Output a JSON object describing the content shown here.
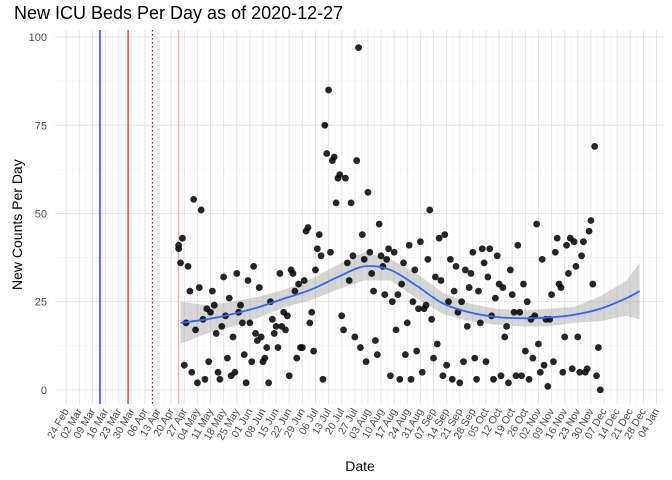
{
  "chart_data": {
    "type": "scatter",
    "title": "New ICU Beds Per Day as of 2020-12-27",
    "xlabel": "Date",
    "ylabel": "New Counts Per Day",
    "ylim": [
      -4,
      102
    ],
    "yticks": [
      0,
      25,
      50,
      75,
      100
    ],
    "xlim": [
      "2020-02-18",
      "2021-01-08"
    ],
    "xticks": [
      "24 Feb",
      "02 Mar",
      "09 Mar",
      "16 Mar",
      "23 Mar",
      "30 Mar",
      "06 Apr",
      "13 Apr",
      "20 Apr",
      "27 Apr",
      "04 May",
      "11 May",
      "18 May",
      "25 May",
      "01 Jun",
      "08 Jun",
      "15 Jun",
      "22 Jun",
      "29 Jun",
      "06 Jul",
      "13 Jul",
      "20 Jul",
      "27 Jul",
      "03 Aug",
      "10 Aug",
      "17 Aug",
      "24 Aug",
      "31 Aug",
      "07 Sep",
      "14 Sep",
      "21 Sep",
      "28 Sep",
      "05 Oct",
      "12 Oct",
      "19 Oct",
      "26 Oct",
      "02 Nov",
      "09 Nov",
      "16 Nov",
      "23 Nov",
      "30 Nov",
      "07 Dec",
      "14 Dec",
      "21 Dec",
      "28 Dec",
      "04 Jan"
    ],
    "xtick_dates": [
      "2020-02-24",
      "2020-03-02",
      "2020-03-09",
      "2020-03-16",
      "2020-03-23",
      "2020-03-30",
      "2020-04-06",
      "2020-04-13",
      "2020-04-20",
      "2020-04-27",
      "2020-05-04",
      "2020-05-11",
      "2020-05-18",
      "2020-05-25",
      "2020-06-01",
      "2020-06-08",
      "2020-06-15",
      "2020-06-22",
      "2020-06-29",
      "2020-07-06",
      "2020-07-13",
      "2020-07-20",
      "2020-07-27",
      "2020-08-03",
      "2020-08-10",
      "2020-08-17",
      "2020-08-24",
      "2020-08-31",
      "2020-09-07",
      "2020-09-14",
      "2020-09-21",
      "2020-09-28",
      "2020-10-05",
      "2020-10-12",
      "2020-10-19",
      "2020-10-26",
      "2020-11-02",
      "2020-11-09",
      "2020-11-16",
      "2020-11-23",
      "2020-11-30",
      "2020-12-07",
      "2020-12-14",
      "2020-12-21",
      "2020-12-28",
      "2021-01-04"
    ],
    "grid": true,
    "vlines": [
      {
        "x": "2020-03-13",
        "color": "#0000ff",
        "style": "solid"
      },
      {
        "x": "2020-03-28",
        "color": "#cc0000",
        "style": "solid"
      },
      {
        "x": "2020-04-10",
        "color": "#cc0000",
        "style": "dotted"
      },
      {
        "x": "2020-04-24",
        "color": "#f4a6a6",
        "style": "solid"
      }
    ],
    "points": [
      {
        "x": "2020-04-24",
        "y": 40
      },
      {
        "x": "2020-04-24",
        "y": 41
      },
      {
        "x": "2020-04-25",
        "y": 36
      },
      {
        "x": "2020-04-26",
        "y": 43
      },
      {
        "x": "2020-04-27",
        "y": 7
      },
      {
        "x": "2020-04-28",
        "y": 19
      },
      {
        "x": "2020-04-29",
        "y": 35
      },
      {
        "x": "2020-04-30",
        "y": 28
      },
      {
        "x": "2020-05-01",
        "y": 5
      },
      {
        "x": "2020-05-02",
        "y": 54
      },
      {
        "x": "2020-05-03",
        "y": 17
      },
      {
        "x": "2020-05-04",
        "y": 2
      },
      {
        "x": "2020-05-05",
        "y": 29
      },
      {
        "x": "2020-05-06",
        "y": 51
      },
      {
        "x": "2020-05-07",
        "y": 20
      },
      {
        "x": "2020-05-08",
        "y": 3
      },
      {
        "x": "2020-05-09",
        "y": 23
      },
      {
        "x": "2020-05-10",
        "y": 8
      },
      {
        "x": "2020-05-11",
        "y": 22
      },
      {
        "x": "2020-05-12",
        "y": 28
      },
      {
        "x": "2020-05-13",
        "y": 24
      },
      {
        "x": "2020-05-14",
        "y": 16
      },
      {
        "x": "2020-05-15",
        "y": 5
      },
      {
        "x": "2020-05-16",
        "y": 3
      },
      {
        "x": "2020-05-17",
        "y": 18
      },
      {
        "x": "2020-05-18",
        "y": 32
      },
      {
        "x": "2020-05-19",
        "y": 21
      },
      {
        "x": "2020-05-20",
        "y": 9
      },
      {
        "x": "2020-05-21",
        "y": 26
      },
      {
        "x": "2020-05-22",
        "y": 4
      },
      {
        "x": "2020-05-23",
        "y": 15
      },
      {
        "x": "2020-05-24",
        "y": 5
      },
      {
        "x": "2020-05-25",
        "y": 33
      },
      {
        "x": "2020-05-26",
        "y": 22
      },
      {
        "x": "2020-05-27",
        "y": 24
      },
      {
        "x": "2020-05-28",
        "y": 19
      },
      {
        "x": "2020-05-29",
        "y": 10
      },
      {
        "x": "2020-05-30",
        "y": 2
      },
      {
        "x": "2020-05-31",
        "y": 31
      },
      {
        "x": "2020-06-01",
        "y": 19
      },
      {
        "x": "2020-06-02",
        "y": 8
      },
      {
        "x": "2020-06-03",
        "y": 35
      },
      {
        "x": "2020-06-04",
        "y": 16
      },
      {
        "x": "2020-06-05",
        "y": 14
      },
      {
        "x": "2020-06-06",
        "y": 29
      },
      {
        "x": "2020-06-07",
        "y": 15
      },
      {
        "x": "2020-06-08",
        "y": 8
      },
      {
        "x": "2020-06-09",
        "y": 9
      },
      {
        "x": "2020-06-10",
        "y": 12
      },
      {
        "x": "2020-06-11",
        "y": 2
      },
      {
        "x": "2020-06-12",
        "y": 25
      },
      {
        "x": "2020-06-13",
        "y": 20
      },
      {
        "x": "2020-06-14",
        "y": 16
      },
      {
        "x": "2020-06-15",
        "y": 18
      },
      {
        "x": "2020-06-16",
        "y": 12
      },
      {
        "x": "2020-06-17",
        "y": 33
      },
      {
        "x": "2020-06-18",
        "y": 18
      },
      {
        "x": "2020-06-19",
        "y": 22
      },
      {
        "x": "2020-06-20",
        "y": 17
      },
      {
        "x": "2020-06-21",
        "y": 21
      },
      {
        "x": "2020-06-22",
        "y": 4
      },
      {
        "x": "2020-06-23",
        "y": 34
      },
      {
        "x": "2020-06-24",
        "y": 33
      },
      {
        "x": "2020-06-25",
        "y": 28
      },
      {
        "x": "2020-06-26",
        "y": 9
      },
      {
        "x": "2020-06-27",
        "y": 30
      },
      {
        "x": "2020-06-28",
        "y": 12
      },
      {
        "x": "2020-06-29",
        "y": 12
      },
      {
        "x": "2020-06-30",
        "y": 31
      },
      {
        "x": "2020-07-01",
        "y": 45
      },
      {
        "x": "2020-07-02",
        "y": 46
      },
      {
        "x": "2020-07-03",
        "y": 19
      },
      {
        "x": "2020-07-04",
        "y": 22
      },
      {
        "x": "2020-07-05",
        "y": 11
      },
      {
        "x": "2020-07-06",
        "y": 34
      },
      {
        "x": "2020-07-07",
        "y": 40
      },
      {
        "x": "2020-07-08",
        "y": 44
      },
      {
        "x": "2020-07-09",
        "y": 38
      },
      {
        "x": "2020-07-10",
        "y": 3
      },
      {
        "x": "2020-07-11",
        "y": 75
      },
      {
        "x": "2020-07-12",
        "y": 67
      },
      {
        "x": "2020-07-13",
        "y": 85
      },
      {
        "x": "2020-07-14",
        "y": 39
      },
      {
        "x": "2020-07-15",
        "y": 65
      },
      {
        "x": "2020-07-16",
        "y": 66
      },
      {
        "x": "2020-07-17",
        "y": 53
      },
      {
        "x": "2020-07-18",
        "y": 60
      },
      {
        "x": "2020-07-19",
        "y": 61
      },
      {
        "x": "2020-07-20",
        "y": 21
      },
      {
        "x": "2020-07-21",
        "y": 17
      },
      {
        "x": "2020-07-22",
        "y": 60
      },
      {
        "x": "2020-07-23",
        "y": 36
      },
      {
        "x": "2020-07-24",
        "y": 31
      },
      {
        "x": "2020-07-25",
        "y": 53
      },
      {
        "x": "2020-07-26",
        "y": 38
      },
      {
        "x": "2020-07-27",
        "y": 15
      },
      {
        "x": "2020-07-28",
        "y": 65
      },
      {
        "x": "2020-07-29",
        "y": 97
      },
      {
        "x": "2020-07-30",
        "y": 12
      },
      {
        "x": "2020-07-31",
        "y": 44
      },
      {
        "x": "2020-08-01",
        "y": 37
      },
      {
        "x": "2020-08-02",
        "y": 8
      },
      {
        "x": "2020-08-03",
        "y": 56
      },
      {
        "x": "2020-08-04",
        "y": 39
      },
      {
        "x": "2020-08-05",
        "y": 33
      },
      {
        "x": "2020-08-06",
        "y": 28
      },
      {
        "x": "2020-08-07",
        "y": 14
      },
      {
        "x": "2020-08-08",
        "y": 10
      },
      {
        "x": "2020-08-09",
        "y": 47
      },
      {
        "x": "2020-08-10",
        "y": 38
      },
      {
        "x": "2020-08-11",
        "y": 35
      },
      {
        "x": "2020-08-12",
        "y": 27
      },
      {
        "x": "2020-08-13",
        "y": 37
      },
      {
        "x": "2020-08-14",
        "y": 40
      },
      {
        "x": "2020-08-15",
        "y": 4
      },
      {
        "x": "2020-08-16",
        "y": 25
      },
      {
        "x": "2020-08-17",
        "y": 39
      },
      {
        "x": "2020-08-18",
        "y": 17
      },
      {
        "x": "2020-08-19",
        "y": 27
      },
      {
        "x": "2020-08-20",
        "y": 3
      },
      {
        "x": "2020-08-21",
        "y": 30
      },
      {
        "x": "2020-08-22",
        "y": 36
      },
      {
        "x": "2020-08-23",
        "y": 10
      },
      {
        "x": "2020-08-24",
        "y": 19
      },
      {
        "x": "2020-08-25",
        "y": 41
      },
      {
        "x": "2020-08-26",
        "y": 3
      },
      {
        "x": "2020-08-27",
        "y": 25
      },
      {
        "x": "2020-08-28",
        "y": 34
      },
      {
        "x": "2020-08-29",
        "y": 11
      },
      {
        "x": "2020-08-30",
        "y": 23
      },
      {
        "x": "2020-08-31",
        "y": 42
      },
      {
        "x": "2020-09-01",
        "y": 5
      },
      {
        "x": "2020-09-02",
        "y": 23
      },
      {
        "x": "2020-09-03",
        "y": 24
      },
      {
        "x": "2020-09-04",
        "y": 37
      },
      {
        "x": "2020-09-05",
        "y": 51
      },
      {
        "x": "2020-09-06",
        "y": 20
      },
      {
        "x": "2020-09-07",
        "y": 9
      },
      {
        "x": "2020-09-08",
        "y": 32
      },
      {
        "x": "2020-09-09",
        "y": 13
      },
      {
        "x": "2020-09-10",
        "y": 43
      },
      {
        "x": "2020-09-11",
        "y": 31
      },
      {
        "x": "2020-09-12",
        "y": 4
      },
      {
        "x": "2020-09-13",
        "y": 44
      },
      {
        "x": "2020-09-14",
        "y": 7
      },
      {
        "x": "2020-09-15",
        "y": 25
      },
      {
        "x": "2020-09-16",
        "y": 37
      },
      {
        "x": "2020-09-17",
        "y": 3
      },
      {
        "x": "2020-09-18",
        "y": 28
      },
      {
        "x": "2020-09-19",
        "y": 35
      },
      {
        "x": "2020-09-20",
        "y": 22
      },
      {
        "x": "2020-09-21",
        "y": 2
      },
      {
        "x": "2020-09-22",
        "y": 25
      },
      {
        "x": "2020-09-23",
        "y": 8
      },
      {
        "x": "2020-09-24",
        "y": 34
      },
      {
        "x": "2020-09-25",
        "y": 18
      },
      {
        "x": "2020-09-26",
        "y": 29
      },
      {
        "x": "2020-09-27",
        "y": 33
      },
      {
        "x": "2020-09-28",
        "y": 39
      },
      {
        "x": "2020-09-29",
        "y": 9
      },
      {
        "x": "2020-09-30",
        "y": 3
      },
      {
        "x": "2020-10-01",
        "y": 28
      },
      {
        "x": "2020-10-02",
        "y": 19
      },
      {
        "x": "2020-10-03",
        "y": 40
      },
      {
        "x": "2020-10-04",
        "y": 36
      },
      {
        "x": "2020-10-05",
        "y": 8
      },
      {
        "x": "2020-10-06",
        "y": 32
      },
      {
        "x": "2020-10-07",
        "y": 40
      },
      {
        "x": "2020-10-08",
        "y": 21
      },
      {
        "x": "2020-10-09",
        "y": 3
      },
      {
        "x": "2020-10-10",
        "y": 26
      },
      {
        "x": "2020-10-11",
        "y": 38
      },
      {
        "x": "2020-10-12",
        "y": 30
      },
      {
        "x": "2020-10-13",
        "y": 4
      },
      {
        "x": "2020-10-14",
        "y": 29
      },
      {
        "x": "2020-10-15",
        "y": 15
      },
      {
        "x": "2020-10-16",
        "y": 18
      },
      {
        "x": "2020-10-17",
        "y": 2
      },
      {
        "x": "2020-10-18",
        "y": 34
      },
      {
        "x": "2020-10-19",
        "y": 27
      },
      {
        "x": "2020-10-20",
        "y": 22
      },
      {
        "x": "2020-10-21",
        "y": 4
      },
      {
        "x": "2020-10-22",
        "y": 41
      },
      {
        "x": "2020-10-23",
        "y": 22
      },
      {
        "x": "2020-10-24",
        "y": 4
      },
      {
        "x": "2020-10-25",
        "y": 30
      },
      {
        "x": "2020-10-26",
        "y": 11
      },
      {
        "x": "2020-10-27",
        "y": 25
      },
      {
        "x": "2020-10-28",
        "y": 3
      },
      {
        "x": "2020-10-29",
        "y": 20
      },
      {
        "x": "2020-10-30",
        "y": 9
      },
      {
        "x": "2020-10-31",
        "y": 21
      },
      {
        "x": "2020-11-01",
        "y": 47
      },
      {
        "x": "2020-11-02",
        "y": 13
      },
      {
        "x": "2020-11-03",
        "y": 5
      },
      {
        "x": "2020-11-04",
        "y": 37
      },
      {
        "x": "2020-11-05",
        "y": 7
      },
      {
        "x": "2020-11-06",
        "y": 20
      },
      {
        "x": "2020-11-07",
        "y": 1
      },
      {
        "x": "2020-11-08",
        "y": 20
      },
      {
        "x": "2020-11-09",
        "y": 27
      },
      {
        "x": "2020-11-10",
        "y": 8
      },
      {
        "x": "2020-11-11",
        "y": 39
      },
      {
        "x": "2020-11-12",
        "y": 43
      },
      {
        "x": "2020-11-13",
        "y": 30
      },
      {
        "x": "2020-11-14",
        "y": 29
      },
      {
        "x": "2020-11-15",
        "y": 5
      },
      {
        "x": "2020-11-16",
        "y": 15
      },
      {
        "x": "2020-11-17",
        "y": 41
      },
      {
        "x": "2020-11-18",
        "y": 33
      },
      {
        "x": "2020-11-19",
        "y": 43
      },
      {
        "x": "2020-11-20",
        "y": 6
      },
      {
        "x": "2020-11-21",
        "y": 42
      },
      {
        "x": "2020-11-22",
        "y": 35
      },
      {
        "x": "2020-11-23",
        "y": 15
      },
      {
        "x": "2020-11-24",
        "y": 5
      },
      {
        "x": "2020-11-25",
        "y": 38
      },
      {
        "x": "2020-11-26",
        "y": 42
      },
      {
        "x": "2020-11-27",
        "y": 5
      },
      {
        "x": "2020-11-28",
        "y": 6
      },
      {
        "x": "2020-11-29",
        "y": 45
      },
      {
        "x": "2020-11-30",
        "y": 48
      },
      {
        "x": "2020-12-01",
        "y": 30
      },
      {
        "x": "2020-12-02",
        "y": 69
      },
      {
        "x": "2020-12-03",
        "y": 4
      },
      {
        "x": "2020-12-04",
        "y": 12
      },
      {
        "x": "2020-12-05",
        "y": 0
      }
    ],
    "trend": {
      "color": "#3366ff",
      "x": [
        "2020-04-25",
        "2020-05-09",
        "2020-05-23",
        "2020-06-06",
        "2020-06-20",
        "2020-07-04",
        "2020-07-18",
        "2020-08-01",
        "2020-08-15",
        "2020-08-29",
        "2020-09-12",
        "2020-09-26",
        "2020-10-10",
        "2020-10-24",
        "2020-11-07",
        "2020-11-21",
        "2020-12-05",
        "2020-12-19",
        "2020-12-26"
      ],
      "y": [
        19,
        20,
        21.5,
        23.5,
        26,
        28.5,
        32,
        35,
        34,
        29.5,
        24.5,
        22,
        20.7,
        20.3,
        20.5,
        21.3,
        23,
        26,
        28
      ],
      "lower": [
        13,
        16,
        18,
        20.5,
        23.5,
        25.5,
        28.5,
        31,
        31,
        26,
        21.5,
        19.5,
        18.5,
        18,
        18,
        19,
        19.5,
        21,
        20
      ],
      "upper": [
        25,
        24,
        25,
        26.5,
        28.5,
        31.5,
        35.5,
        39,
        37,
        33,
        27.5,
        24.5,
        23,
        22.5,
        23,
        23.5,
        26.5,
        31,
        36
      ]
    }
  }
}
